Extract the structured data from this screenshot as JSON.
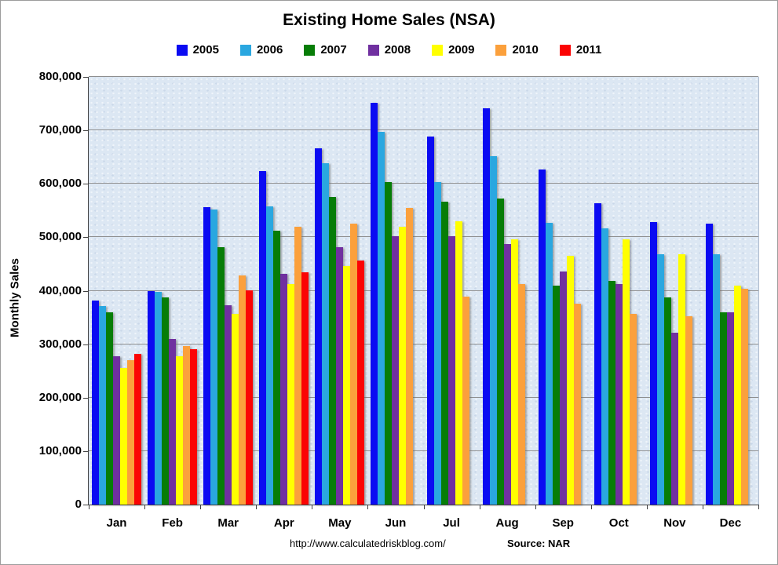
{
  "chart": {
    "title": "Existing Home Sales (NSA)",
    "ylabel": "Monthly Sales",
    "footer_url": "http://www.calculatedriskblog.com/",
    "footer_source": "Source: NAR"
  },
  "chart_data": {
    "type": "bar",
    "title": "Existing Home Sales (NSA)",
    "xlabel": "",
    "ylabel": "Monthly Sales",
    "ylim": [
      0,
      800000
    ],
    "ytick_interval": 100000,
    "ytick_labels": [
      "0",
      "100,000",
      "200,000",
      "300,000",
      "400,000",
      "500,000",
      "600,000",
      "700,000",
      "800,000"
    ],
    "grid": true,
    "legend_position": "top",
    "categories": [
      "Jan",
      "Feb",
      "Mar",
      "Apr",
      "May",
      "Jun",
      "Jul",
      "Aug",
      "Sep",
      "Oct",
      "Nov",
      "Dec"
    ],
    "series": [
      {
        "name": "2005",
        "color": "#0b0bf2",
        "values": [
          381000,
          400000,
          556000,
          624000,
          667000,
          751000,
          689000,
          741000,
          627000,
          564000,
          528000,
          526000
        ]
      },
      {
        "name": "2006",
        "color": "#2aa7e0",
        "values": [
          371000,
          398000,
          552000,
          558000,
          639000,
          697000,
          604000,
          652000,
          527000,
          516000,
          469000,
          468000
        ]
      },
      {
        "name": "2007",
        "color": "#077d07",
        "values": [
          360000,
          387000,
          482000,
          513000,
          576000,
          604000,
          567000,
          572000,
          409000,
          419000,
          387000,
          359000
        ]
      },
      {
        "name": "2008",
        "color": "#7030a0",
        "values": [
          277000,
          310000,
          373000,
          432000,
          482000,
          502000,
          502000,
          488000,
          436000,
          412000,
          321000,
          360000
        ]
      },
      {
        "name": "2009",
        "color": "#ffff00",
        "values": [
          255000,
          278000,
          356000,
          413000,
          446000,
          519000,
          530000,
          496000,
          465000,
          496000,
          468000,
          410000
        ]
      },
      {
        "name": "2010",
        "color": "#fba03c",
        "values": [
          270000,
          296000,
          428000,
          520000,
          525000,
          555000,
          389000,
          412000,
          376000,
          357000,
          353000,
          403000
        ]
      },
      {
        "name": "2011",
        "color": "#fb0404",
        "values": [
          282000,
          290000,
          401000,
          435000,
          457000,
          null,
          null,
          null,
          null,
          null,
          null,
          null
        ]
      }
    ]
  }
}
